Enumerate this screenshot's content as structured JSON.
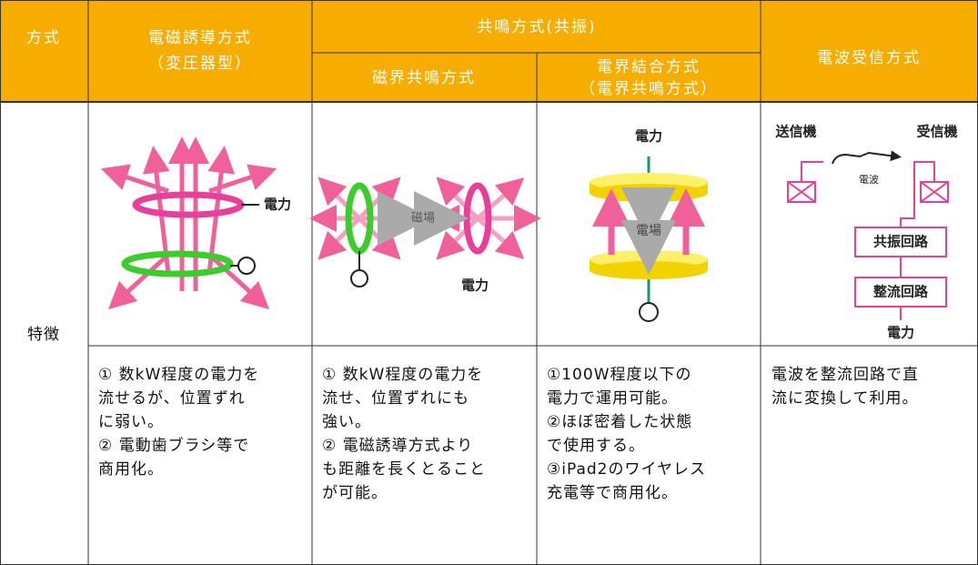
{
  "table": {
    "header": {
      "method": "方式",
      "col1": [
        "電磁誘導方式",
        "（変圧器型）"
      ],
      "resonance": "共鳴方式(共振)",
      "col2": "磁界共鳴方式",
      "col3": [
        "電界結合方式",
        "（電界共鳴方式）"
      ],
      "col4": "電波受信方式"
    },
    "row_label": "特徴",
    "figures": {
      "col1": {
        "power": "電力"
      },
      "col2": {
        "field": "磁場",
        "power": "電力"
      },
      "col3": {
        "power": "電力",
        "field": "電場"
      },
      "col4": {
        "transmitter": "送信機",
        "receiver": "受信機",
        "wave": "電波",
        "resonant_circuit": "共振回路",
        "rectifier_circuit": "整流回路",
        "power": "電力"
      }
    },
    "descriptions": [
      [
        "① 数kW程度の電力を",
        "流せるが、位置ずれ",
        "に弱い。",
        "② 電動歯ブラシ等で",
        "商用化。"
      ],
      [
        "① 数kW程度の電力を",
        "流せ、位置ずれにも",
        "強い。",
        "② 電磁誘導方式より",
        "も距離を長くとること",
        "が可能。"
      ],
      [
        "①100W程度以下の",
        "電力で運用可能。",
        "②ほぼ密着した状態",
        "で使用する。",
        "③iPad2のワイヤレス",
        "充電等で商用化。"
      ],
      [
        "電波を整流回路で直",
        "流に変換して利用。"
      ]
    ]
  }
}
